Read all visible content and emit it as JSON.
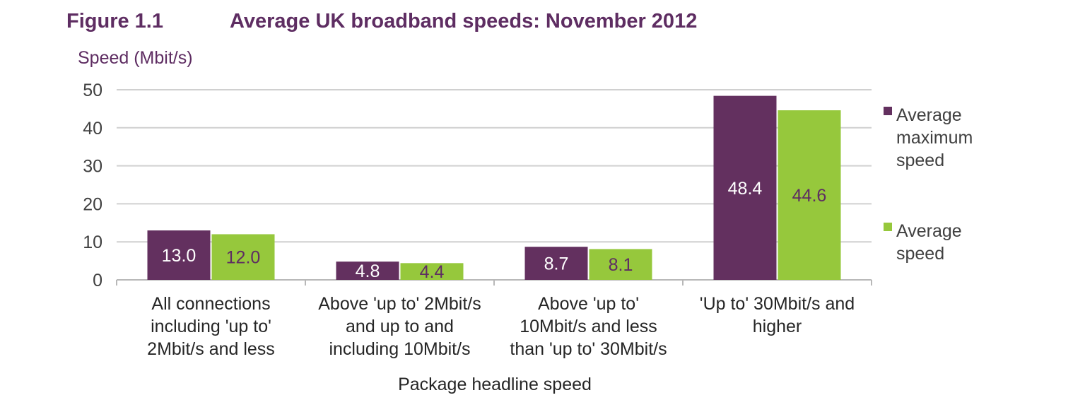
{
  "figure": {
    "number": "Figure 1.1",
    "title": "Average UK broadband speeds: November 2012"
  },
  "chart_data": {
    "type": "bar",
    "title": "Average UK broadband speeds: November 2012",
    "ylabel": "Speed (Mbit/s)",
    "xlabel": "Package headline speed",
    "ylim": [
      0,
      50
    ],
    "yticks": [
      "0",
      "10",
      "20",
      "30",
      "40",
      "50"
    ],
    "grid": true,
    "legend_position": "right",
    "categories": [
      [
        "All connections",
        "including 'up to'",
        "2Mbit/s and less"
      ],
      [
        "Above 'up to' 2Mbit/s",
        "and up to and",
        "including 10Mbit/s"
      ],
      [
        "Above 'up to'",
        "10Mbit/s and less",
        "than 'up to' 30Mbit/s"
      ],
      [
        "'Up to' 30Mbit/s and",
        "higher"
      ]
    ],
    "series": [
      {
        "name": [
          "Average",
          "maximum",
          "speed"
        ],
        "values": [
          13.0,
          4.8,
          8.7,
          48.4
        ],
        "labels": [
          "13.0",
          "4.8",
          "8.7",
          "48.4"
        ],
        "color": "#63305f",
        "label_color": "#ffffff"
      },
      {
        "name": [
          "Average",
          "speed"
        ],
        "values": [
          12.0,
          4.4,
          8.1,
          44.6
        ],
        "labels": [
          "12.0",
          "4.4",
          "8.1",
          "44.6"
        ],
        "color": "#96c83c",
        "label_color": "#5e2d62"
      }
    ]
  }
}
